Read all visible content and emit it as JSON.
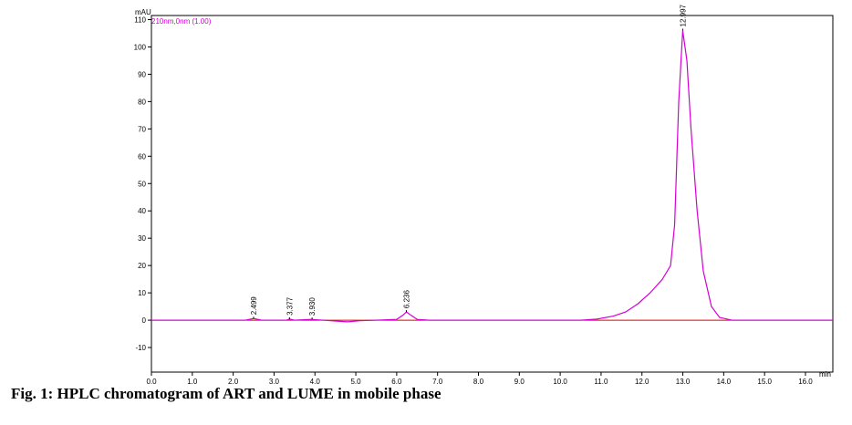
{
  "chart_data": {
    "type": "line",
    "y_axis_label": "mAU",
    "x_axis_label": "min",
    "channel_label": "210nm,0nm (1.00)",
    "caption": "Fig. 1: HPLC chromatogram of ART and LUME in mobile phase",
    "xlim": [
      0,
      16.67
    ],
    "ylim": [
      -19,
      111.5
    ],
    "xticks": [
      {
        "value": 0,
        "label": "0.0"
      },
      {
        "value": 1,
        "label": "1.0"
      },
      {
        "value": 2,
        "label": "2.0"
      },
      {
        "value": 3,
        "label": "3.0"
      },
      {
        "value": 4,
        "label": "4.0"
      },
      {
        "value": 5,
        "label": "5.0"
      },
      {
        "value": 6,
        "label": "6.0"
      },
      {
        "value": 7,
        "label": "7.0"
      },
      {
        "value": 8,
        "label": "8.0"
      },
      {
        "value": 9,
        "label": "9.0"
      },
      {
        "value": 10,
        "label": "10.0"
      },
      {
        "value": 11,
        "label": "11.0"
      },
      {
        "value": 12,
        "label": "12.0"
      },
      {
        "value": 13,
        "label": "13.0"
      },
      {
        "value": 14,
        "label": "14.0"
      },
      {
        "value": 15,
        "label": "15.0"
      },
      {
        "value": 16,
        "label": "16.0"
      }
    ],
    "yticks": [
      -10,
      0,
      10,
      20,
      30,
      40,
      50,
      60,
      70,
      80,
      90,
      100,
      110
    ],
    "baseline_color": "#e00000",
    "series": [
      {
        "color": "#d400d4",
        "x": [
          0,
          2.3,
          2.5,
          2.7,
          3.3,
          3.38,
          3.5,
          3.9,
          4.2,
          4.5,
          4.8,
          5.1,
          5.5,
          6.0,
          6.15,
          6.24,
          6.35,
          6.5,
          6.8,
          10.5,
          10.9,
          11.3,
          11.6,
          11.9,
          12.2,
          12.5,
          12.7,
          12.8,
          12.9,
          12.997,
          13.1,
          13.2,
          13.35,
          13.5,
          13.7,
          13.9,
          14.2,
          16.67
        ],
        "values": [
          0,
          0,
          0.6,
          0,
          0,
          0.4,
          0,
          0.3,
          0,
          -0.3,
          -0.6,
          -0.2,
          0,
          0.3,
          1.8,
          3,
          1.8,
          0.3,
          0,
          0,
          0.4,
          1.5,
          3,
          6,
          10,
          15,
          20,
          35,
          80,
          106,
          95,
          70,
          40,
          18,
          5,
          1,
          0,
          0
        ]
      }
    ],
    "peaks": [
      {
        "value": 2.499,
        "label": "2.499",
        "height": 0.6
      },
      {
        "value": 3.377,
        "label": "3.377",
        "height": 0.4
      },
      {
        "value": 3.93,
        "label": "3.930",
        "height": 0.3
      },
      {
        "value": 6.236,
        "label": "6.236",
        "height": 3
      },
      {
        "value": 12.997,
        "label": "12.997",
        "height": 106
      }
    ]
  }
}
